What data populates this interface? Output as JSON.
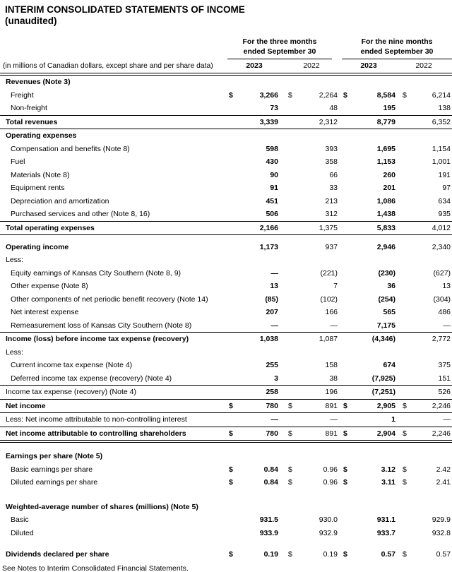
{
  "title": "INTERIM CONSOLIDATED STATEMENTS OF INCOME",
  "subtitle": "(unaudited)",
  "header": {
    "caption": "(in millions of Canadian dollars, except share and per share data)",
    "groups": [
      {
        "line1": "For the three months",
        "line2": "ended September 30"
      },
      {
        "line1": "For the nine months",
        "line2": "ended September 30"
      }
    ],
    "years": [
      "2023",
      "2022",
      "2023",
      "2022"
    ]
  },
  "rows": [
    {
      "style": "section",
      "label": "Revenues (Note 3)",
      "cur": [
        "",
        "",
        "",
        ""
      ],
      "vals": [
        "",
        "",
        "",
        ""
      ],
      "rule": "none"
    },
    {
      "style": "item",
      "label": "Freight",
      "cur": [
        "$",
        "$",
        "$",
        "$"
      ],
      "vals": [
        "3,266",
        "2,264",
        "8,584",
        "6,214"
      ],
      "rule": "none"
    },
    {
      "style": "item",
      "label": "Non-freight",
      "cur": [
        "",
        "",
        "",
        ""
      ],
      "vals": [
        "73",
        "48",
        "195",
        "138"
      ],
      "rule": "single"
    },
    {
      "style": "total",
      "label": "Total revenues",
      "cur": [
        "",
        "",
        "",
        ""
      ],
      "vals": [
        "3,339",
        "2,312",
        "8,779",
        "6,352"
      ],
      "rule": "single"
    },
    {
      "style": "section",
      "label": "Operating expenses",
      "cur": [
        "",
        "",
        "",
        ""
      ],
      "vals": [
        "",
        "",
        "",
        ""
      ],
      "rule": "none"
    },
    {
      "style": "item",
      "label": "Compensation and benefits (Note 8)",
      "cur": [
        "",
        "",
        "",
        ""
      ],
      "vals": [
        "598",
        "393",
        "1,695",
        "1,154"
      ],
      "rule": "none"
    },
    {
      "style": "item",
      "label": "Fuel",
      "cur": [
        "",
        "",
        "",
        ""
      ],
      "vals": [
        "430",
        "358",
        "1,153",
        "1,001"
      ],
      "rule": "none"
    },
    {
      "style": "item",
      "label": "Materials (Note 8)",
      "cur": [
        "",
        "",
        "",
        ""
      ],
      "vals": [
        "90",
        "66",
        "260",
        "191"
      ],
      "rule": "none"
    },
    {
      "style": "item",
      "label": "Equipment rents",
      "cur": [
        "",
        "",
        "",
        ""
      ],
      "vals": [
        "91",
        "33",
        "201",
        "97"
      ],
      "rule": "none"
    },
    {
      "style": "item",
      "label": "Depreciation and amortization",
      "cur": [
        "",
        "",
        "",
        ""
      ],
      "vals": [
        "451",
        "213",
        "1,086",
        "634"
      ],
      "rule": "none"
    },
    {
      "style": "item",
      "label": "Purchased services and other (Note 8, 16)",
      "cur": [
        "",
        "",
        "",
        ""
      ],
      "vals": [
        "506",
        "312",
        "1,438",
        "935"
      ],
      "rule": "single"
    },
    {
      "style": "total",
      "label": "Total operating expenses",
      "cur": [
        "",
        "",
        "",
        ""
      ],
      "vals": [
        "2,166",
        "1,375",
        "5,833",
        "4,012"
      ],
      "rule": "single"
    },
    {
      "style": "spacer",
      "h": 8
    },
    {
      "style": "total",
      "label": "Operating income",
      "cur": [
        "",
        "",
        "",
        ""
      ],
      "vals": [
        "1,173",
        "937",
        "2,946",
        "2,340"
      ],
      "rule": "none"
    },
    {
      "style": "plain",
      "label": "Less:",
      "cur": [
        "",
        "",
        "",
        ""
      ],
      "vals": [
        "",
        "",
        "",
        ""
      ],
      "rule": "none"
    },
    {
      "style": "item",
      "label": "Equity earnings of Kansas City Southern (Note 8, 9)",
      "cur": [
        "",
        "",
        "",
        ""
      ],
      "vals": [
        "—",
        "(221)",
        "(230)",
        "(627)"
      ],
      "rule": "none"
    },
    {
      "style": "item",
      "label": "Other expense (Note 8)",
      "cur": [
        "",
        "",
        "",
        ""
      ],
      "vals": [
        "13",
        "7",
        "36",
        "13"
      ],
      "rule": "none"
    },
    {
      "style": "item",
      "label": "Other components of net periodic benefit recovery (Note 14)",
      "cur": [
        "",
        "",
        "",
        ""
      ],
      "vals": [
        "(85)",
        "(102)",
        "(254)",
        "(304)"
      ],
      "rule": "none"
    },
    {
      "style": "item",
      "label": "Net interest expense",
      "cur": [
        "",
        "",
        "",
        ""
      ],
      "vals": [
        "207",
        "166",
        "565",
        "486"
      ],
      "rule": "none"
    },
    {
      "style": "item",
      "label": "Remeasurement loss of Kansas City Southern (Note 8)",
      "cur": [
        "",
        "",
        "",
        ""
      ],
      "vals": [
        "—",
        "—",
        "7,175",
        "—"
      ],
      "rule": "single"
    },
    {
      "style": "total",
      "label": "Income (loss) before income tax expense (recovery)",
      "cur": [
        "",
        "",
        "",
        ""
      ],
      "vals": [
        "1,038",
        "1,087",
        "(4,346)",
        "2,772"
      ],
      "rule": "none"
    },
    {
      "style": "plain",
      "label": "Less:",
      "cur": [
        "",
        "",
        "",
        ""
      ],
      "vals": [
        "",
        "",
        "",
        ""
      ],
      "rule": "none"
    },
    {
      "style": "item",
      "label": "Current income tax expense (Note 4)",
      "cur": [
        "",
        "",
        "",
        ""
      ],
      "vals": [
        "255",
        "158",
        "674",
        "375"
      ],
      "rule": "none"
    },
    {
      "style": "item",
      "label": "Deferred income tax expense (recovery) (Note 4)",
      "cur": [
        "",
        "",
        "",
        ""
      ],
      "vals": [
        "3",
        "38",
        "(7,925)",
        "151"
      ],
      "rule": "single"
    },
    {
      "style": "plain",
      "label": "Income tax expense (recovery) (Note 4)",
      "cur": [
        "",
        "",
        "",
        ""
      ],
      "vals": [
        "258",
        "196",
        "(7,251)",
        "526"
      ],
      "rule": "single"
    },
    {
      "style": "total",
      "label": "Net income",
      "cur": [
        "$",
        "$",
        "$",
        "$"
      ],
      "vals": [
        "780",
        "891",
        "2,905",
        "2,246"
      ],
      "rule": "single"
    },
    {
      "style": "plain",
      "label": "Less: Net income attributable to non-controlling interest",
      "cur": [
        "",
        "",
        "",
        ""
      ],
      "vals": [
        "—",
        "—",
        "1",
        "—"
      ],
      "rule": "single"
    },
    {
      "style": "total",
      "label": "Net income attributable to controlling shareholders",
      "cur": [
        "$",
        "$",
        "$",
        "$"
      ],
      "vals": [
        "780",
        "891",
        "2,904",
        "2,246"
      ],
      "rule": "double"
    },
    {
      "style": "spacer",
      "h": 12
    },
    {
      "style": "section",
      "label": "Earnings per share (Note 5)",
      "cur": [
        "",
        "",
        "",
        ""
      ],
      "vals": [
        "",
        "",
        "",
        ""
      ],
      "rule": "none"
    },
    {
      "style": "item",
      "label": "Basic earnings per share",
      "cur": [
        "$",
        "$",
        "$",
        "$"
      ],
      "vals": [
        "0.84",
        "0.96",
        "3.12",
        "2.42"
      ],
      "rule": "none"
    },
    {
      "style": "item",
      "label": "Diluted earnings per share",
      "cur": [
        "$",
        "$",
        "$",
        "$"
      ],
      "vals": [
        "0.84",
        "0.96",
        "3.11",
        "2.41"
      ],
      "rule": "none"
    },
    {
      "style": "spacer",
      "h": 16
    },
    {
      "style": "section",
      "label": "Weighted-average number of shares (millions) (Note 5)",
      "cur": [
        "",
        "",
        "",
        ""
      ],
      "vals": [
        "",
        "",
        "",
        ""
      ],
      "rule": "none"
    },
    {
      "style": "item",
      "label": "Basic",
      "cur": [
        "",
        "",
        "",
        ""
      ],
      "vals": [
        "931.5",
        "930.0",
        "931.1",
        "929.9"
      ],
      "rule": "none"
    },
    {
      "style": "item",
      "label": "Diluted",
      "cur": [
        "",
        "",
        "",
        ""
      ],
      "vals": [
        "933.9",
        "932.9",
        "933.7",
        "932.8"
      ],
      "rule": "none"
    },
    {
      "style": "spacer",
      "h": 12
    },
    {
      "style": "total",
      "label": "Dividends declared per share",
      "cur": [
        "$",
        "$",
        "$",
        "$"
      ],
      "vals": [
        "0.19",
        "0.19",
        "0.57",
        "0.57"
      ],
      "rule": "none"
    }
  ],
  "footer": "See Notes to Interim Consolidated Financial Statements."
}
